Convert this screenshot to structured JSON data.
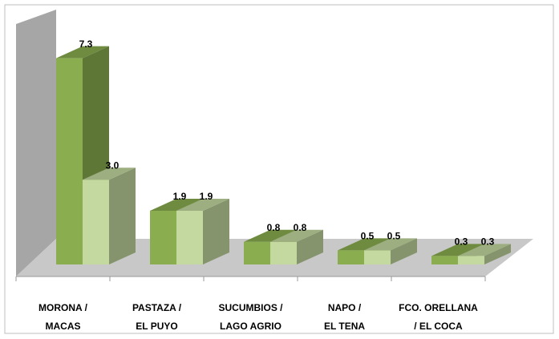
{
  "chart_data": {
    "type": "bar3d",
    "categories": [
      [
        "MORONA /",
        "MACAS"
      ],
      [
        "PASTAZA /",
        "EL PUYO"
      ],
      [
        "SUCUMBIOS /",
        "LAGO AGRIO"
      ],
      [
        "NAPO      /",
        "EL TENA"
      ],
      [
        "FCO. ORELLANA",
        "/  EL COCA"
      ]
    ],
    "series": [
      {
        "color": "#8aae4f",
        "values": [
          7.3,
          1.9,
          0.8,
          0.5,
          0.3
        ],
        "value_labels": [
          "7.3",
          "1.9",
          "0.8",
          "0.5",
          "0.3"
        ]
      },
      {
        "color": "#c4d9a0",
        "values": [
          3.0,
          1.9,
          0.8,
          0.5,
          0.3
        ],
        "value_labels": [
          "3.0",
          "1.9",
          "0.8",
          "0.5",
          "0.3"
        ]
      }
    ],
    "ylim": [
      0,
      8
    ]
  }
}
